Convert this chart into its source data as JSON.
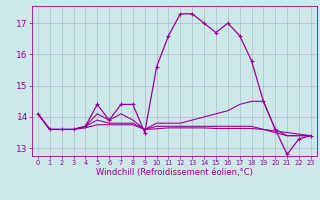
{
  "line1_x": [
    0,
    1,
    2,
    3,
    4,
    5,
    6,
    7,
    8,
    9,
    10,
    11,
    12,
    13,
    14,
    15,
    16,
    17,
    18,
    19,
    20,
    21,
    22,
    23
  ],
  "line1_y": [
    14.1,
    13.6,
    13.6,
    13.6,
    13.7,
    14.4,
    13.9,
    14.4,
    14.4,
    13.5,
    15.6,
    16.6,
    17.3,
    17.3,
    17.0,
    16.7,
    17.0,
    16.6,
    15.8,
    14.5,
    13.6,
    12.8,
    13.3,
    13.4
  ],
  "line2_x": [
    0,
    1,
    2,
    3,
    4,
    5,
    6,
    7,
    8,
    9,
    10,
    11,
    12,
    13,
    14,
    15,
    16,
    17,
    18,
    19,
    20,
    21,
    22,
    23
  ],
  "line2_y": [
    14.1,
    13.6,
    13.6,
    13.6,
    13.7,
    14.1,
    13.9,
    14.1,
    13.9,
    13.6,
    13.8,
    13.8,
    13.8,
    13.9,
    14.0,
    14.1,
    14.2,
    14.4,
    14.5,
    14.5,
    13.6,
    13.4,
    13.4,
    13.4
  ],
  "line3_x": [
    0,
    1,
    2,
    3,
    4,
    5,
    6,
    7,
    8,
    9,
    10,
    11,
    12,
    13,
    14,
    15,
    16,
    17,
    18,
    19,
    20,
    21,
    22,
    23
  ],
  "line3_y": [
    14.1,
    13.6,
    13.6,
    13.6,
    13.7,
    13.9,
    13.8,
    13.8,
    13.8,
    13.6,
    13.7,
    13.7,
    13.7,
    13.7,
    13.7,
    13.7,
    13.7,
    13.7,
    13.7,
    13.6,
    13.5,
    13.4,
    13.4,
    13.4
  ],
  "line4_x": [
    0,
    1,
    2,
    3,
    4,
    5,
    6,
    7,
    8,
    9,
    10,
    11,
    12,
    13,
    14,
    15,
    16,
    17,
    18,
    19,
    20,
    21,
    22,
    23
  ],
  "line4_y": [
    14.1,
    13.6,
    13.6,
    13.6,
    13.65,
    13.75,
    13.75,
    13.75,
    13.75,
    13.6,
    13.62,
    13.65,
    13.65,
    13.65,
    13.65,
    13.63,
    13.63,
    13.63,
    13.63,
    13.6,
    13.55,
    13.5,
    13.45,
    13.4
  ],
  "xlabel": "Windchill (Refroidissement éolien,°C)",
  "xlim": [
    0,
    23
  ],
  "ylim": [
    12.75,
    17.55
  ],
  "yticks": [
    13,
    14,
    15,
    16,
    17
  ],
  "xticks": [
    0,
    1,
    2,
    3,
    4,
    5,
    6,
    7,
    8,
    9,
    10,
    11,
    12,
    13,
    14,
    15,
    16,
    17,
    18,
    19,
    20,
    21,
    22,
    23
  ],
  "bg_color": "#cce8e8",
  "grid_color": "#b0b8d0",
  "line_color": "#990099",
  "fig_bg": "#cce8e8",
  "xlabel_fontsize": 6.0,
  "ytick_fontsize": 6.5,
  "xtick_fontsize": 4.8
}
